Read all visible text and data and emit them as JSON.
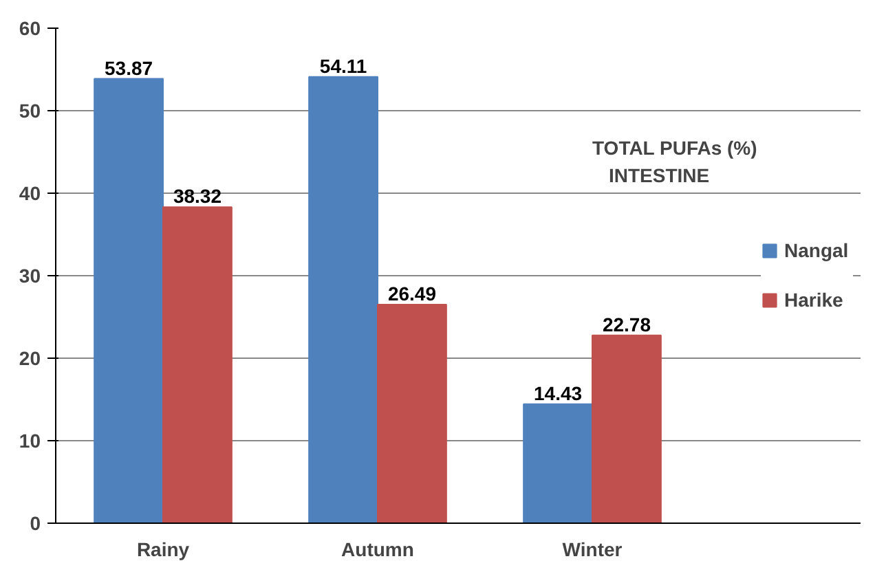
{
  "chart_data": {
    "type": "bar",
    "title": "TOTAL PUFAs (%)\nINTESTINE",
    "categories": [
      "Rainy",
      "Autumn",
      "Winter"
    ],
    "series": [
      {
        "name": "Nangal",
        "color": "#4f81bd",
        "values": [
          53.87,
          54.11,
          14.43
        ]
      },
      {
        "name": "Harike",
        "color": "#c0504d",
        "values": [
          38.32,
          26.49,
          22.78
        ]
      }
    ],
    "ylim": [
      0,
      60
    ],
    "yticks": [
      0,
      10,
      20,
      30,
      40,
      50,
      60
    ],
    "grid": "y",
    "legend": "right",
    "data_labels": true
  }
}
